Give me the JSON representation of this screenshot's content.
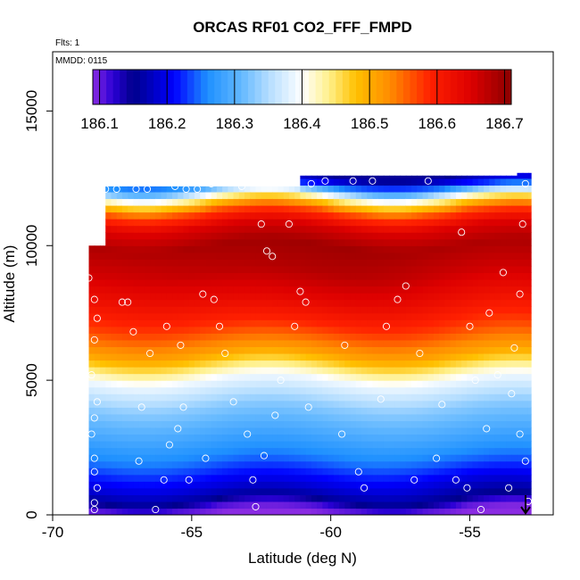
{
  "chart_data": {
    "type": "heatmap",
    "title": "ORCAS RF01 CO2_FFF_FMPD",
    "annotations": [
      "Flts: 1",
      "MMDD: 0115"
    ],
    "xlabel": "Latitude (deg N)",
    "ylabel": "Altitude (m)",
    "xlim": [
      -70,
      -52
    ],
    "ylim": [
      0,
      17200
    ],
    "x_ticks": [
      -70,
      -65,
      -60,
      -55
    ],
    "y_ticks": [
      0,
      5000,
      10000,
      15000
    ],
    "data_extent": {
      "lat": [
        -68.7,
        -52.8
      ],
      "alt": [
        0,
        12700
      ]
    },
    "colorbar": {
      "ticks": [
        186.1,
        186.2,
        186.3,
        186.4,
        186.5,
        186.6,
        186.7
      ],
      "range": [
        186.09,
        186.71
      ],
      "stops": [
        [
          186.09,
          "#8a2be2"
        ],
        [
          186.12,
          "#2a00d5"
        ],
        [
          186.15,
          "#00008b"
        ],
        [
          186.21,
          "#0000ff"
        ],
        [
          186.26,
          "#1e90ff"
        ],
        [
          186.31,
          "#63b8ff"
        ],
        [
          186.35,
          "#b3ddff"
        ],
        [
          186.4,
          "#ffffff"
        ],
        [
          186.44,
          "#fff08a"
        ],
        [
          186.48,
          "#ffc000"
        ],
        [
          186.53,
          "#ff8c00"
        ],
        [
          186.59,
          "#ff2000"
        ],
        [
          186.65,
          "#dd0000"
        ],
        [
          186.71,
          "#8b0000"
        ]
      ]
    },
    "profile": [
      [
        0,
        186.09
      ],
      [
        300,
        186.11
      ],
      [
        600,
        186.16
      ],
      [
        1000,
        186.19
      ],
      [
        2000,
        186.25
      ],
      [
        3000,
        186.29
      ],
      [
        4000,
        186.33
      ],
      [
        5000,
        186.39
      ],
      [
        5500,
        186.45
      ],
      [
        6000,
        186.51
      ],
      [
        7000,
        186.58
      ],
      [
        8000,
        186.63
      ],
      [
        9000,
        186.67
      ],
      [
        10000,
        186.69
      ],
      [
        10700,
        186.65
      ],
      [
        11300,
        186.56
      ],
      [
        11800,
        186.42
      ],
      [
        12200,
        186.28
      ],
      [
        12700,
        186.2
      ]
    ],
    "samples": [
      [
        -68.5,
        200
      ],
      [
        -68.5,
        450
      ],
      [
        -68.4,
        1000
      ],
      [
        -68.5,
        1600
      ],
      [
        -68.5,
        2100
      ],
      [
        -68.6,
        3000
      ],
      [
        -68.5,
        3600
      ],
      [
        -68.4,
        4200
      ],
      [
        -68.6,
        5200
      ],
      [
        -68.5,
        6500
      ],
      [
        -68.4,
        7300
      ],
      [
        -68.5,
        8000
      ],
      [
        -68.7,
        8800
      ],
      [
        -68.4,
        11200
      ],
      [
        -68.4,
        12000
      ],
      [
        -68.1,
        12100
      ],
      [
        -67.7,
        12100
      ],
      [
        -67.5,
        7900
      ],
      [
        -67.3,
        7900
      ],
      [
        -67.1,
        6800
      ],
      [
        -67.0,
        12100
      ],
      [
        -66.9,
        2000
      ],
      [
        -66.8,
        4000
      ],
      [
        -66.6,
        12100
      ],
      [
        -66.5,
        6000
      ],
      [
        -66.3,
        200
      ],
      [
        -66.0,
        1300
      ],
      [
        -65.9,
        7000
      ],
      [
        -65.8,
        2600
      ],
      [
        -65.6,
        12200
      ],
      [
        -65.5,
        3200
      ],
      [
        -65.4,
        6300
      ],
      [
        -65.3,
        4000
      ],
      [
        -65.2,
        12100
      ],
      [
        -65.1,
        1300
      ],
      [
        -64.8,
        12100
      ],
      [
        -64.6,
        8200
      ],
      [
        -64.5,
        2100
      ],
      [
        -64.3,
        12300
      ],
      [
        -64.2,
        8000
      ],
      [
        -64.0,
        7000
      ],
      [
        -63.8,
        6000
      ],
      [
        -63.5,
        4200
      ],
      [
        -63.2,
        12200
      ],
      [
        -63.0,
        3000
      ],
      [
        -62.8,
        1300
      ],
      [
        -62.7,
        300
      ],
      [
        -62.5,
        10800
      ],
      [
        -62.4,
        2200
      ],
      [
        -62.3,
        9800
      ],
      [
        -62.1,
        9600
      ],
      [
        -62.0,
        3700
      ],
      [
        -61.8,
        5000
      ],
      [
        -61.5,
        10800
      ],
      [
        -61.3,
        7000
      ],
      [
        -61.1,
        8300
      ],
      [
        -60.9,
        7900
      ],
      [
        -60.8,
        4000
      ],
      [
        -60.7,
        12300
      ],
      [
        -60.2,
        12400
      ],
      [
        -59.6,
        3000
      ],
      [
        -59.5,
        6300
      ],
      [
        -59.2,
        12400
      ],
      [
        -59.0,
        1600
      ],
      [
        -58.8,
        1000
      ],
      [
        -58.5,
        12400
      ],
      [
        -58.2,
        4300
      ],
      [
        -58.0,
        7000
      ],
      [
        -57.6,
        8000
      ],
      [
        -57.3,
        8500
      ],
      [
        -57.0,
        1300
      ],
      [
        -56.8,
        6000
      ],
      [
        -56.5,
        12400
      ],
      [
        -56.2,
        2100
      ],
      [
        -56.0,
        4100
      ],
      [
        -55.5,
        1300
      ],
      [
        -55.3,
        10500
      ],
      [
        -55.1,
        1000
      ],
      [
        -55.0,
        7000
      ],
      [
        -54.8,
        5000
      ],
      [
        -54.6,
        200
      ],
      [
        -54.4,
        3200
      ],
      [
        -54.3,
        7500
      ],
      [
        -54.0,
        5200
      ],
      [
        -53.8,
        9000
      ],
      [
        -53.6,
        1000
      ],
      [
        -53.5,
        4500
      ],
      [
        -53.4,
        6200
      ],
      [
        -53.2,
        8200
      ],
      [
        -53.1,
        10800
      ],
      [
        -53.0,
        12300
      ],
      [
        -53.2,
        3000
      ],
      [
        -53.0,
        2000
      ],
      [
        -52.9,
        500
      ]
    ]
  }
}
